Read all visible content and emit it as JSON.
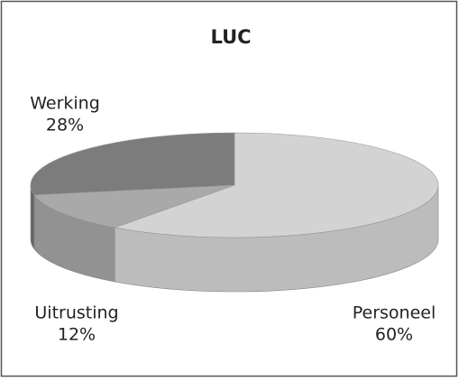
{
  "chart_data": {
    "type": "pie3d",
    "title": "LUC",
    "categories": [
      "Personeel",
      "Uitrusting",
      "Werking"
    ],
    "values": [
      60,
      12,
      28
    ],
    "value_labels": [
      "60%",
      "12%",
      "28%"
    ],
    "colors": [
      "#d3d3d3",
      "#a9a9a9",
      "#7c7c7c"
    ],
    "side_colors": [
      "#bcbcbc",
      "#929292",
      "#666666"
    ]
  }
}
